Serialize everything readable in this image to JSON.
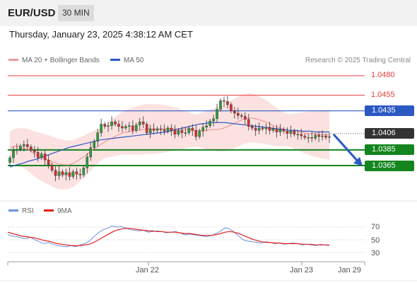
{
  "header": {
    "symbol": "EUR/USD",
    "timeframe": "30 MIN"
  },
  "datetime": "Thursday, January 23, 2025 4:38:12 AM CET",
  "legend": {
    "ma20_label": "MA 20 + Bollinger Bands",
    "ma50_label": "MA 50",
    "copyright": "Research © 2025 Trading Central",
    "rsi_label": "RSI",
    "rsi_ma_label": "9MA"
  },
  "colors": {
    "resistance": "#e83c3c",
    "pivot": "#2b59c3",
    "support": "#14851f",
    "current": "#333333",
    "bull": "#2e9a3a",
    "bear": "#d93030",
    "ma20": "#ef9a9a",
    "ma50": "#2b59c3",
    "band_fill": "#fcdcdc",
    "rsi": "#6f8fe0",
    "rsi_ma": "#e02020"
  },
  "levels": {
    "r2": "1.0480",
    "r1": "1.0455",
    "pivot": "1.0435",
    "current": "1.0406",
    "s1": "1.0385",
    "s2": "1.0365"
  },
  "rsi_ticks": [
    "70",
    "50",
    "30"
  ],
  "x_ticks": [
    "Jan 22",
    "Jan 23",
    "Jan 29"
  ],
  "chart_data": {
    "type": "candlestick",
    "instrument": "EUR/USD",
    "timeframe": "30 MIN",
    "x_ticks": [
      "Jan 22",
      "Jan 23",
      "Jan 29"
    ],
    "y_ticks": [
      1.0365,
      1.0385,
      1.0406,
      1.0435,
      1.0455,
      1.048
    ],
    "horizontal_levels": [
      {
        "value": 1.048,
        "kind": "resistance"
      },
      {
        "value": 1.0455,
        "kind": "resistance"
      },
      {
        "value": 1.0435,
        "kind": "pivot"
      },
      {
        "value": 1.0406,
        "kind": "current"
      },
      {
        "value": 1.0385,
        "kind": "support"
      },
      {
        "value": 1.0365,
        "kind": "support"
      }
    ],
    "forecast_arrow": {
      "from": 1.0405,
      "to": 1.0365
    },
    "close": [
      1.0375,
      1.0384,
      1.0386,
      1.039,
      1.0392,
      1.0389,
      1.0385,
      1.0382,
      1.0375,
      1.038,
      1.0372,
      1.0366,
      1.0359,
      1.0352,
      1.0357,
      1.0353,
      1.0356,
      1.0351,
      1.0357,
      1.0354,
      1.0353,
      1.0362,
      1.0376,
      1.0388,
      1.0396,
      1.0407,
      1.0418,
      1.0415,
      1.0416,
      1.0421,
      1.0418,
      1.0415,
      1.0413,
      1.0415,
      1.0416,
      1.041,
      1.0417,
      1.0421,
      1.0418,
      1.0407,
      1.0412,
      1.041,
      1.0412,
      1.0411,
      1.0409,
      1.0413,
      1.041,
      1.0405,
      1.041,
      1.0407,
      1.0407,
      1.0413,
      1.041,
      1.0402,
      1.0409,
      1.0414,
      1.0416,
      1.0422,
      1.0425,
      1.0437,
      1.0448,
      1.0447,
      1.0443,
      1.0435,
      1.0432,
      1.0429,
      1.0428,
      1.0424,
      1.0415,
      1.0413,
      1.041,
      1.0413,
      1.0412,
      1.0414,
      1.041,
      1.0412,
      1.0408,
      1.0411,
      1.0409,
      1.0406,
      1.0409,
      1.0405,
      1.0405,
      1.0403,
      1.0401,
      1.0401,
      1.04,
      1.0404,
      1.0402,
      1.0403,
      1.0401,
      1.0402
    ],
    "ma20": [
      1.0388,
      1.039,
      1.0389,
      1.0387,
      1.0384,
      1.038,
      1.0377,
      1.0374,
      1.0372,
      1.0369,
      1.0367,
      1.0366,
      1.0366,
      1.0368,
      1.0372,
      1.0376,
      1.0381,
      1.0386,
      1.039,
      1.0394,
      1.0398,
      1.0401,
      1.0404,
      1.0407,
      1.0408,
      1.0409,
      1.041,
      1.0411,
      1.0412,
      1.0412,
      1.0412,
      1.0412,
      1.0412,
      1.0412,
      1.0412,
      1.0411,
      1.0411,
      1.041,
      1.041,
      1.041,
      1.041,
      1.0411,
      1.0411,
      1.0412,
      1.0414,
      1.0417,
      1.042,
      1.0423,
      1.0425,
      1.0426,
      1.0425,
      1.0423,
      1.0421,
      1.0418,
      1.0415,
      1.0413,
      1.0411,
      1.041,
      1.0409,
      1.0408,
      1.0407,
      1.0406,
      1.0406,
      1.0405,
      1.0405,
      1.0404
    ],
    "ma50": [
      1.0363,
      1.0366,
      1.0368,
      1.0371,
      1.0373,
      1.0376,
      1.0379,
      1.0382,
      1.0385,
      1.0388,
      1.039,
      1.0392,
      1.0394,
      1.0396,
      1.0398,
      1.0399,
      1.04,
      1.0401,
      1.0402,
      1.0403,
      1.0404,
      1.0405,
      1.0406,
      1.0407,
      1.0408,
      1.041,
      1.0412,
      1.0414,
      1.0416,
      1.0418,
      1.0419,
      1.042,
      1.042,
      1.042,
      1.0419,
      1.0418,
      1.0417,
      1.0416,
      1.0415,
      1.0414,
      1.0413,
      1.0412,
      1.0411,
      1.041,
      1.041,
      1.0409,
      1.0409,
      1.0408,
      1.0408,
      1.0408
    ],
    "rsi_ylim": [
      20,
      80
    ],
    "rsi_gridlines": [
      70,
      50,
      30
    ],
    "rsi": [
      58,
      56,
      55,
      53,
      52,
      54,
      50,
      47,
      44,
      46,
      43,
      41,
      40,
      39,
      41,
      39,
      42,
      44,
      48,
      55,
      61,
      66,
      68,
      72,
      70,
      71,
      69,
      66,
      65,
      64,
      65,
      62,
      63,
      64,
      63,
      61,
      62,
      63,
      61,
      58,
      59,
      58,
      57,
      56,
      55,
      57,
      60,
      64,
      69,
      67,
      62,
      56,
      50,
      48,
      47,
      46,
      45,
      47,
      46,
      44,
      45,
      43,
      44,
      45,
      44,
      42,
      43,
      42,
      41,
      43,
      42,
      41
    ],
    "rsi_ma": [
      62,
      60,
      58,
      56,
      55,
      54,
      53,
      51,
      49,
      48,
      46,
      44,
      43,
      42,
      41,
      41,
      41,
      42,
      43,
      46,
      50,
      54,
      58,
      62,
      65,
      67,
      68,
      68,
      67,
      66,
      65,
      64,
      64,
      63,
      63,
      62,
      62,
      62,
      61,
      60,
      60,
      59,
      58,
      57,
      57,
      57,
      58,
      60,
      62,
      63,
      62,
      60,
      57,
      54,
      51,
      49,
      47,
      46,
      46,
      45,
      45,
      44,
      44,
      44,
      44,
      43,
      43,
      43,
      42,
      42,
      42,
      42
    ],
    "ylim": [
      1.034,
      1.049
    ]
  }
}
